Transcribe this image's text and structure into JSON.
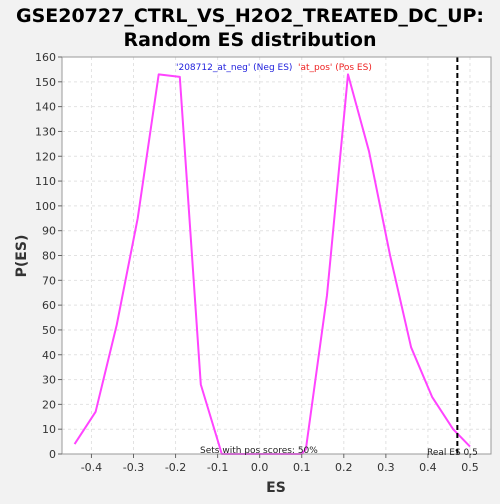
{
  "chart_data": {
    "type": "line",
    "title": "GSE20727_CTRL_VS_H2O2_TREATED_DC_UP:",
    "subtitle": "Random ES distribution",
    "xlabel": "ES",
    "ylabel": "P(ES)",
    "xlim": [
      -0.47,
      0.55
    ],
    "ylim": [
      0,
      160
    ],
    "x_ticks": [
      -0.4,
      -0.3,
      -0.2,
      -0.1,
      0.0,
      0.1,
      0.2,
      0.3,
      0.4,
      0.5
    ],
    "x_tick_labels": [
      "-0.4",
      "-0.3",
      "-0.2",
      "-0.1",
      "0.0",
      "0.1",
      "0.2",
      "0.3",
      "0.4",
      "0.5"
    ],
    "y_ticks": [
      0,
      10,
      20,
      30,
      40,
      50,
      60,
      70,
      80,
      90,
      100,
      110,
      120,
      130,
      140,
      150,
      160
    ],
    "y_tick_labels": [
      "0",
      "10",
      "20",
      "30",
      "40",
      "50",
      "60",
      "70",
      "80",
      "90",
      "100",
      "110",
      "120",
      "130",
      "140",
      "150",
      "160"
    ],
    "grid": true,
    "series": [
      {
        "color": "#ff44ff",
        "x": [
          -0.44,
          -0.39,
          -0.34,
          -0.29,
          -0.24,
          -0.19,
          -0.14,
          -0.09,
          0.1,
          0.11,
          0.16,
          0.21,
          0.26,
          0.31,
          0.36,
          0.41,
          0.46,
          0.5
        ],
        "y": [
          4,
          17,
          52,
          95,
          153,
          152,
          28,
          0,
          0,
          2,
          64,
          153,
          122,
          80,
          43,
          23,
          10,
          3
        ]
      }
    ],
    "real_es": {
      "x": 0.47,
      "label": "Real ES 0.5",
      "color": "#000000"
    },
    "annotations": {
      "neg_label": "'208712_at_neg' (Neg ES)",
      "neg_color": "#2222dd",
      "pos_label": "'at_pos' (Pos ES)",
      "pos_color": "#ee2222",
      "footer": "Sets with pos scores: 50%"
    }
  }
}
